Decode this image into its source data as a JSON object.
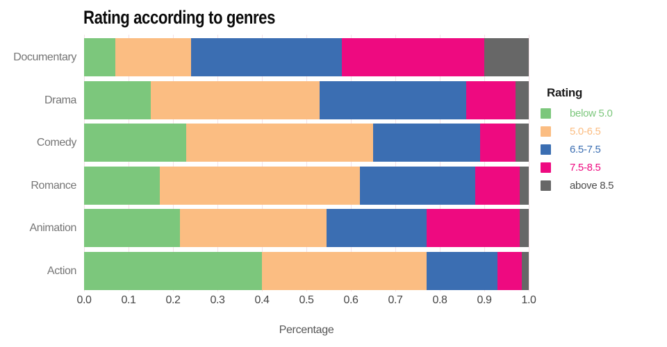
{
  "chart_data": {
    "type": "bar",
    "orientation": "horizontal",
    "stacked": true,
    "title": "Rating according to genres",
    "xlabel": "Percentage",
    "ylabel": "",
    "xlim": [
      0.0,
      1.0
    ],
    "xticks": [
      "0.0",
      "0.1",
      "0.2",
      "0.3",
      "0.4",
      "0.5",
      "0.6",
      "0.7",
      "0.8",
      "0.9",
      "1.0"
    ],
    "grid": true,
    "legend_position": "right",
    "legend": {
      "title": "Rating"
    },
    "categories": [
      "Documentary",
      "Drama",
      "Comedy",
      "Romance",
      "Animation",
      "Action"
    ],
    "series": [
      {
        "name": "below 5.0",
        "color": "#7CC77C",
        "label_color": "#7CC77C",
        "values": [
          0.07,
          0.15,
          0.23,
          0.17,
          0.215,
          0.4
        ]
      },
      {
        "name": "5.0-6.5",
        "color": "#FBBD82",
        "label_color": "#FBBD82",
        "values": [
          0.17,
          0.38,
          0.42,
          0.45,
          0.33,
          0.37
        ]
      },
      {
        "name": "6.5-7.5",
        "color": "#3B6EB2",
        "label_color": "#3B6EB2",
        "values": [
          0.34,
          0.33,
          0.24,
          0.26,
          0.225,
          0.16
        ]
      },
      {
        "name": "7.5-8.5",
        "color": "#EE0A80",
        "label_color": "#EE0A80",
        "values": [
          0.32,
          0.11,
          0.08,
          0.1,
          0.21,
          0.055
        ]
      },
      {
        "name": "above 8.5",
        "color": "#676767",
        "label_color": "#4C4C4C",
        "values": [
          0.1,
          0.03,
          0.03,
          0.02,
          0.02,
          0.015
        ]
      }
    ],
    "colors": {
      "grid": "#F5E0E6",
      "tick_label": "#444444",
      "category_label": "#757575",
      "axis_label": "#555555",
      "title": "#0A0A0A",
      "legend_title": "#1A1A1A"
    }
  }
}
